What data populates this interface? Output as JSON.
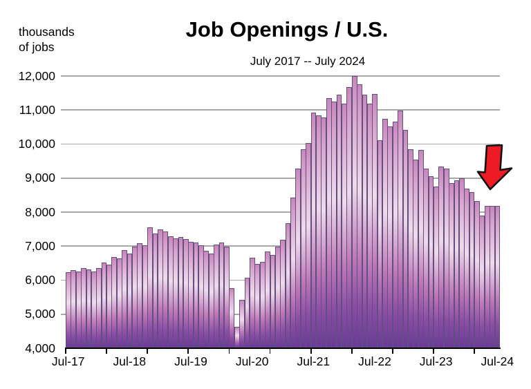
{
  "title": "Job Openings / U.S.",
  "subtitle": "July 2017 -- July 2024",
  "y_axis_unit_line1": "thousands",
  "y_axis_unit_line2": "of jobs",
  "colors": {
    "arrow_red": "#ed1c24",
    "arrow_outline": "#111111",
    "bar_border": "#5f5080",
    "bar_grad_top": "#c886bb",
    "bar_grad_upper": "#d8a3cd",
    "bar_grad_light": "#efdbeb",
    "bar_grad_mid": "#c07ab8",
    "bar_grad_deep": "#8c4da6",
    "bar_grad_bottom": "#693a96",
    "gridline": "#a8a8a8",
    "axis": "#000000",
    "text": "#000000"
  },
  "chart_data": {
    "type": "bar",
    "title": "Job Openings / U.S.",
    "subtitle": "July 2017 -- July 2024",
    "ylabel": "thousands of jobs",
    "ylim": [
      4000,
      12000
    ],
    "y_ticks": [
      4000,
      5000,
      6000,
      7000,
      8000,
      9000,
      10000,
      11000,
      12000
    ],
    "y_tick_labels": [
      "4,000",
      "5,000",
      "6,000",
      "7,000",
      "8,000",
      "9,000",
      "10,000",
      "11,000",
      "12,000"
    ],
    "x_start": "Jul-17",
    "x_end": "Jul-24",
    "x_tick_labels": [
      "Jul-17",
      "Jul-18",
      "Jul-19",
      "Jul-20",
      "Jul-21",
      "Jul-22",
      "Jul-23",
      "Jul-24"
    ],
    "x_label_every_n_bars": 12,
    "axis_tick_every_n_bars": 8,
    "grid": true,
    "legend": false,
    "annotation": "red arrow pointing down at the most recent bars",
    "values": [
      6240,
      6300,
      6260,
      6350,
      6310,
      6260,
      6360,
      6510,
      6460,
      6680,
      6630,
      6880,
      6790,
      6980,
      7090,
      7030,
      7560,
      7380,
      7500,
      7430,
      7280,
      7230,
      7260,
      7210,
      7120,
      7110,
      7030,
      6860,
      6790,
      7050,
      7100,
      6990,
      5760,
      4620,
      5430,
      6070,
      6670,
      6470,
      6540,
      6840,
      6740,
      6980,
      7180,
      7680,
      8420,
      9270,
      9840,
      10040,
      10920,
      10850,
      10780,
      11350,
      11250,
      11460,
      11190,
      11670,
      12000,
      11760,
      11460,
      11190,
      11470,
      10110,
      10750,
      10510,
      10650,
      10980,
      10410,
      9840,
      9540,
      9830,
      9270,
      9050,
      8760,
      9330,
      9270,
      8860,
      8930,
      9000,
      8700,
      8590,
      8320,
      7890,
      8180,
      8180,
      8180
    ]
  }
}
